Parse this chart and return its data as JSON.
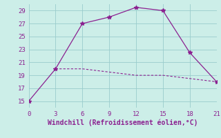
{
  "line1_x": [
    0,
    3,
    6,
    9,
    12,
    15,
    18,
    21
  ],
  "line1_y": [
    15,
    20,
    27,
    28,
    29.5,
    29,
    22.5,
    18
  ],
  "line2_x": [
    3,
    6,
    9,
    12,
    15,
    18,
    21
  ],
  "line2_y": [
    20,
    20,
    19.5,
    19,
    19,
    18.5,
    18
  ],
  "line_color": "#8b2090",
  "bg_color": "#cceee8",
  "grid_color": "#99cccc",
  "xlabel": "Windchill (Refroidissement éolien,°C)",
  "xlim": [
    0,
    21
  ],
  "ylim": [
    14,
    30
  ],
  "xticks": [
    0,
    3,
    6,
    9,
    12,
    15,
    18,
    21
  ],
  "yticks": [
    15,
    17,
    19,
    21,
    23,
    25,
    27,
    29
  ],
  "marker": "*",
  "marker_size": 4,
  "line1_style": "-",
  "line2_style": "--",
  "tick_fontsize": 6.5,
  "xlabel_fontsize": 7
}
